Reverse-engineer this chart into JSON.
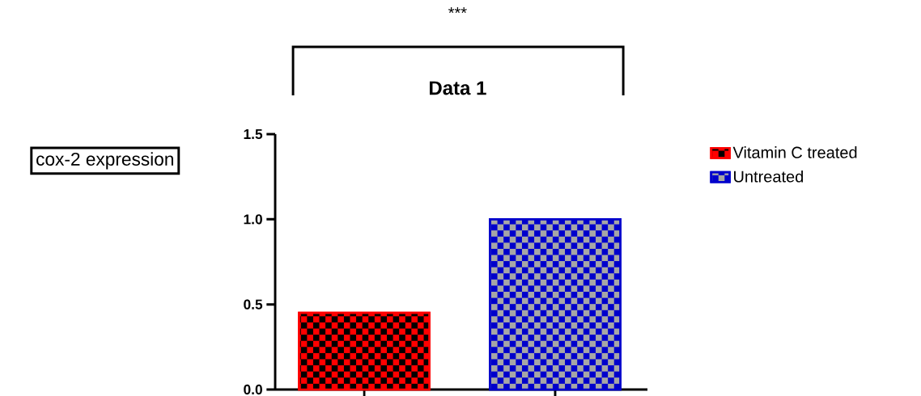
{
  "chart_data": {
    "type": "bar",
    "title": "Data 1",
    "ylabel": "cox-2 expression",
    "categories": [
      null,
      null
    ],
    "series": [
      {
        "name": "Vitamin C treated",
        "color": "#ff0000",
        "values": [
          0.45,
          null
        ]
      },
      {
        "name": "Untreated",
        "color": "#0000cc",
        "values": [
          null,
          1.0
        ]
      }
    ],
    "ylim": [
      0,
      1.5
    ],
    "yticks": [
      {
        "value": 0,
        "label": "0.0"
      },
      {
        "value": 0.5,
        "label": "0.5"
      },
      {
        "value": 1.0,
        "label": "1.0"
      },
      {
        "value": 1.5,
        "label": "1.5"
      }
    ],
    "legend": "right",
    "annotations": [
      "***"
    ]
  }
}
